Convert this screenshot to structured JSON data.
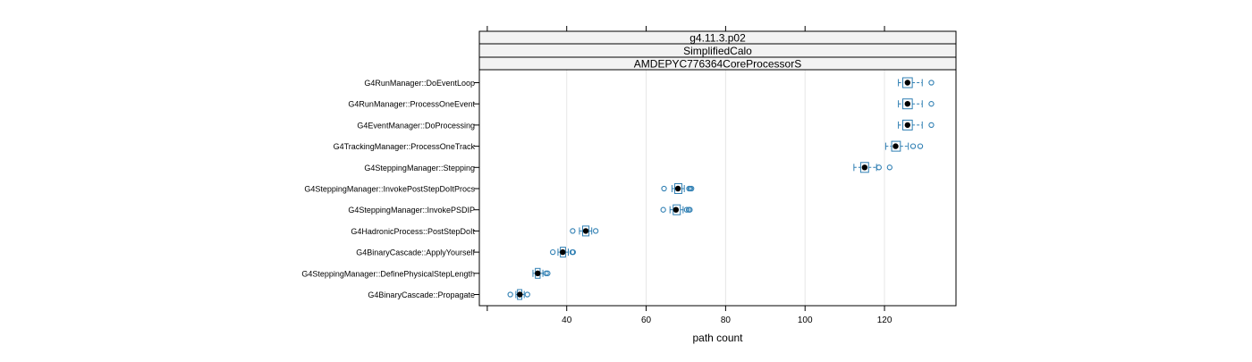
{
  "chart_data": {
    "type": "boxplot",
    "strips": [
      "g4.11.3.p02",
      "SimplifiedCalo",
      "AMDEPYC776364CoreProcessorS"
    ],
    "xlabel": "path count",
    "xlim": [
      18,
      138
    ],
    "xticks": [
      40,
      60,
      80,
      100,
      120
    ],
    "grid": "vertical",
    "colors": {
      "box": "#2f7fb3",
      "median": "#000000",
      "grid": "#e6e6e6",
      "strip_bg": "#f2f2f2"
    },
    "categories": [
      {
        "label": "G4RunManager::DoEventLoop",
        "stats": {
          "wlo": 123.5,
          "q1": 124.6,
          "med": 125.8,
          "q3": 127,
          "whi": 129.5
        },
        "outliers": [
          131.8
        ]
      },
      {
        "label": "G4RunManager::ProcessOneEvent",
        "stats": {
          "wlo": 123.5,
          "q1": 124.6,
          "med": 125.8,
          "q3": 127,
          "whi": 129.5
        },
        "outliers": [
          131.8
        ]
      },
      {
        "label": "G4EventManager::DoProcessing",
        "stats": {
          "wlo": 123.5,
          "q1": 124.6,
          "med": 125.8,
          "q3": 127,
          "whi": 129.5
        },
        "outliers": [
          131.8
        ]
      },
      {
        "label": "G4TrackingManager::ProcessOneTrack",
        "stats": {
          "wlo": 120.3,
          "q1": 121.8,
          "med": 122.8,
          "q3": 124,
          "whi": 126
        },
        "outliers": [
          127.2,
          129
        ]
      },
      {
        "label": "G4SteppingManager::Stepping",
        "stats": {
          "wlo": 112.3,
          "q1": 114,
          "med": 115,
          "q3": 116,
          "whi": 118
        },
        "outliers": [
          118.6,
          121.3
        ]
      },
      {
        "label": "G4SteppingManager::InvokePostStepDoItProcs",
        "stats": {
          "wlo": 66.5,
          "q1": 67.2,
          "med": 68,
          "q3": 69,
          "whi": 69.6
        },
        "outliers": [
          64.5,
          70.8,
          71.1,
          71.4
        ]
      },
      {
        "label": "G4SteppingManager::InvokePSDIP",
        "stats": {
          "wlo": 66,
          "q1": 66.8,
          "med": 67.5,
          "q3": 68.6,
          "whi": 69.3
        },
        "outliers": [
          64.3,
          70.2,
          70.7,
          71
        ]
      },
      {
        "label": "G4HadronicProcess::PostStepDoIt",
        "stats": {
          "wlo": 43.2,
          "q1": 44,
          "med": 44.8,
          "q3": 45.6,
          "whi": 46.3
        },
        "outliers": [
          41.5,
          47.3
        ]
      },
      {
        "label": "G4BinaryCascade::ApplyYourself",
        "stats": {
          "wlo": 37.8,
          "q1": 38.4,
          "med": 39,
          "q3": 39.7,
          "whi": 40.4
        },
        "outliers": [
          36.5,
          41.4,
          41.6
        ]
      },
      {
        "label": "G4SteppingManager::DefinePhysicalStepLength",
        "stats": {
          "wlo": 31.5,
          "q1": 32.1,
          "med": 32.7,
          "q3": 33.3,
          "whi": 34
        },
        "outliers": [
          34.8,
          35.2
        ]
      },
      {
        "label": "G4BinaryCascade::Propagate",
        "stats": {
          "wlo": 27.2,
          "q1": 27.6,
          "med": 28.2,
          "q3": 28.7,
          "whi": 29.3
        },
        "outliers": [
          25.8,
          30.1
        ]
      }
    ]
  }
}
